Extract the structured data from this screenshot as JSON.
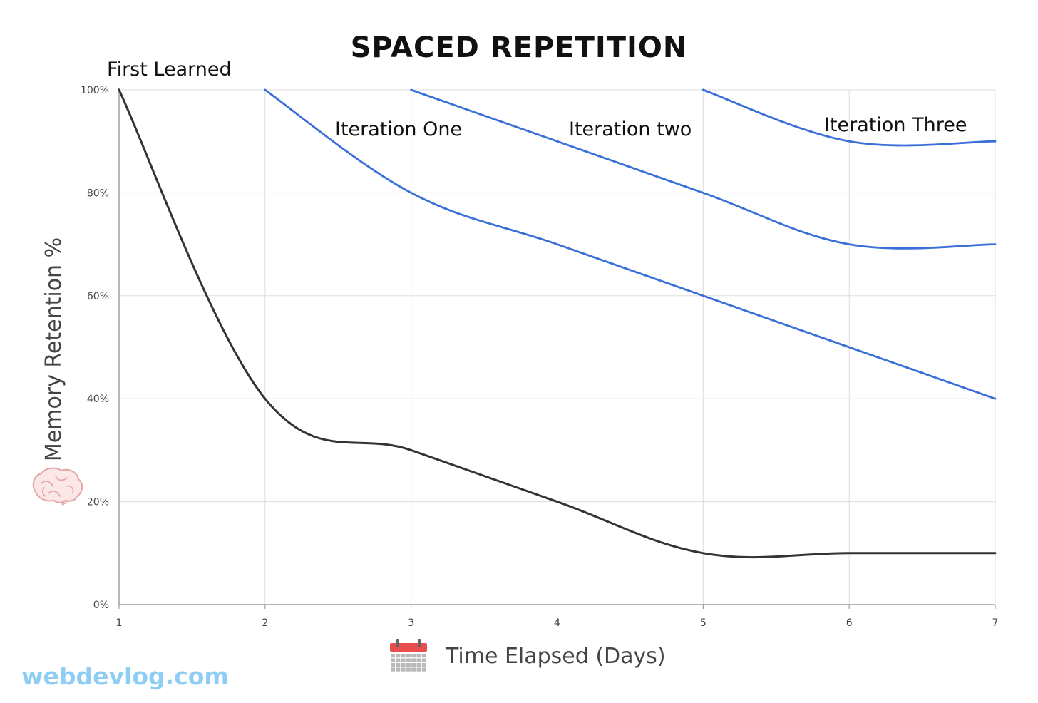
{
  "chart_data": {
    "type": "line",
    "title": "SPACED REPETITION",
    "xlabel": "Time Elapsed (Days)",
    "ylabel": "Memory Retention %",
    "x": [
      1,
      2,
      3,
      4,
      5,
      6,
      7
    ],
    "xlim": [
      1,
      7
    ],
    "ylim": [
      0,
      100
    ],
    "y_ticks": [
      "0%",
      "20%",
      "40%",
      "60%",
      "80%",
      "100%"
    ],
    "grid": true,
    "series": [
      {
        "name": "First Learned",
        "color": "#333333",
        "points": [
          [
            1,
            100
          ],
          [
            2,
            40
          ],
          [
            3,
            30
          ],
          [
            4,
            20
          ],
          [
            5,
            10
          ],
          [
            6,
            10
          ],
          [
            7,
            10
          ]
        ]
      },
      {
        "name": "Iteration One",
        "color": "#3a6fd8",
        "points": [
          [
            2,
            100
          ],
          [
            3,
            80
          ],
          [
            4,
            70
          ],
          [
            5,
            60
          ],
          [
            6,
            50
          ],
          [
            7,
            40
          ]
        ]
      },
      {
        "name": "Iteration two",
        "color": "#3a6fd8",
        "points": [
          [
            3,
            100
          ],
          [
            4,
            90
          ],
          [
            5,
            80
          ],
          [
            6,
            70
          ],
          [
            7,
            70
          ]
        ]
      },
      {
        "name": "Iteration Three",
        "color": "#3a6fd8",
        "points": [
          [
            5,
            100
          ],
          [
            6,
            90
          ],
          [
            7,
            90
          ]
        ]
      }
    ]
  },
  "icons": {
    "brain": "brain-icon",
    "calendar": "calendar-icon"
  },
  "watermark": "webdevlog.com"
}
